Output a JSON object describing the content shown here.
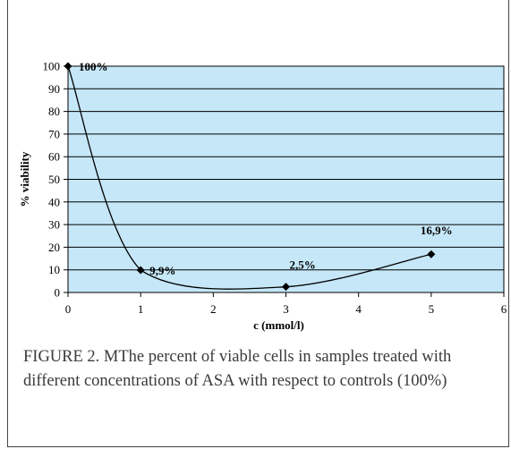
{
  "chart_data": {
    "type": "line",
    "title": "",
    "xlabel": "c (mmol/l)",
    "ylabel": "% viability",
    "xlim": [
      0,
      6
    ],
    "ylim": [
      0,
      100
    ],
    "x_ticks": [
      "0",
      "1",
      "2",
      "3",
      "4",
      "5",
      "6"
    ],
    "y_ticks": [
      "0",
      "10",
      "20",
      "30",
      "40",
      "50",
      "60",
      "70",
      "80",
      "90",
      "100"
    ],
    "grid": "horizontal",
    "legend": "none",
    "series": [
      {
        "x": [
          0,
          1,
          3,
          5
        ],
        "values": [
          100,
          9.9,
          2.5,
          16.9
        ],
        "labels": [
          "100%",
          "9,9%",
          "2,5%",
          "16,9%"
        ]
      }
    ],
    "colors": {
      "plot_background": "#c5e7f7",
      "line": "#000000",
      "marker": "#000000"
    }
  },
  "caption": "FIGURE 2. MThe percent of viable cells in samples treated with different concentrations of ASA with respect to controls (100%)"
}
